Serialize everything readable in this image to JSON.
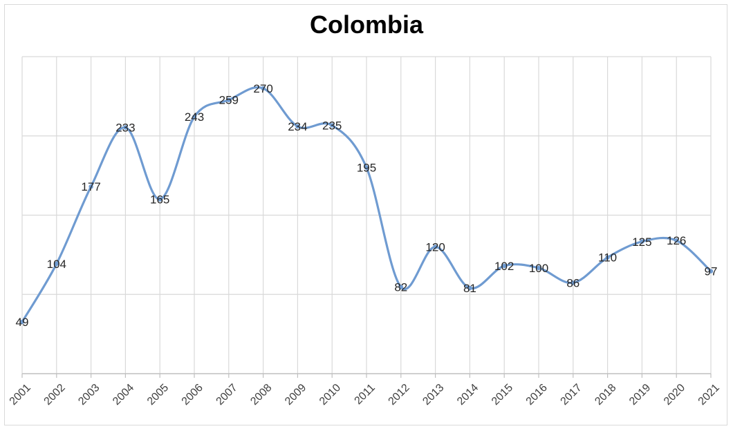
{
  "chart_data": {
    "type": "line",
    "title": "Colombia",
    "xlabel": "",
    "ylabel": "",
    "categories": [
      "2001",
      "2002",
      "2003",
      "2004",
      "2005",
      "2006",
      "2007",
      "2008",
      "2009",
      "2010",
      "2011",
      "2012",
      "2013",
      "2014",
      "2015",
      "2016",
      "2017",
      "2018",
      "2019",
      "2020",
      "2021"
    ],
    "series": [
      {
        "values": [
          49,
          104,
          177,
          233,
          165,
          243,
          259,
          270,
          234,
          235,
          195,
          82,
          120,
          81,
          102,
          100,
          86,
          110,
          125,
          126,
          97
        ]
      }
    ],
    "ylim": [
      0,
      300
    ],
    "yticks": [
      0,
      75,
      150,
      225,
      300
    ],
    "grid": true,
    "smooth": true,
    "data_labels": true,
    "legend": "none",
    "colors": {
      "line": "#6f9bd1",
      "grid": "#d9d9d9",
      "axis": "#bfbfbf"
    }
  }
}
